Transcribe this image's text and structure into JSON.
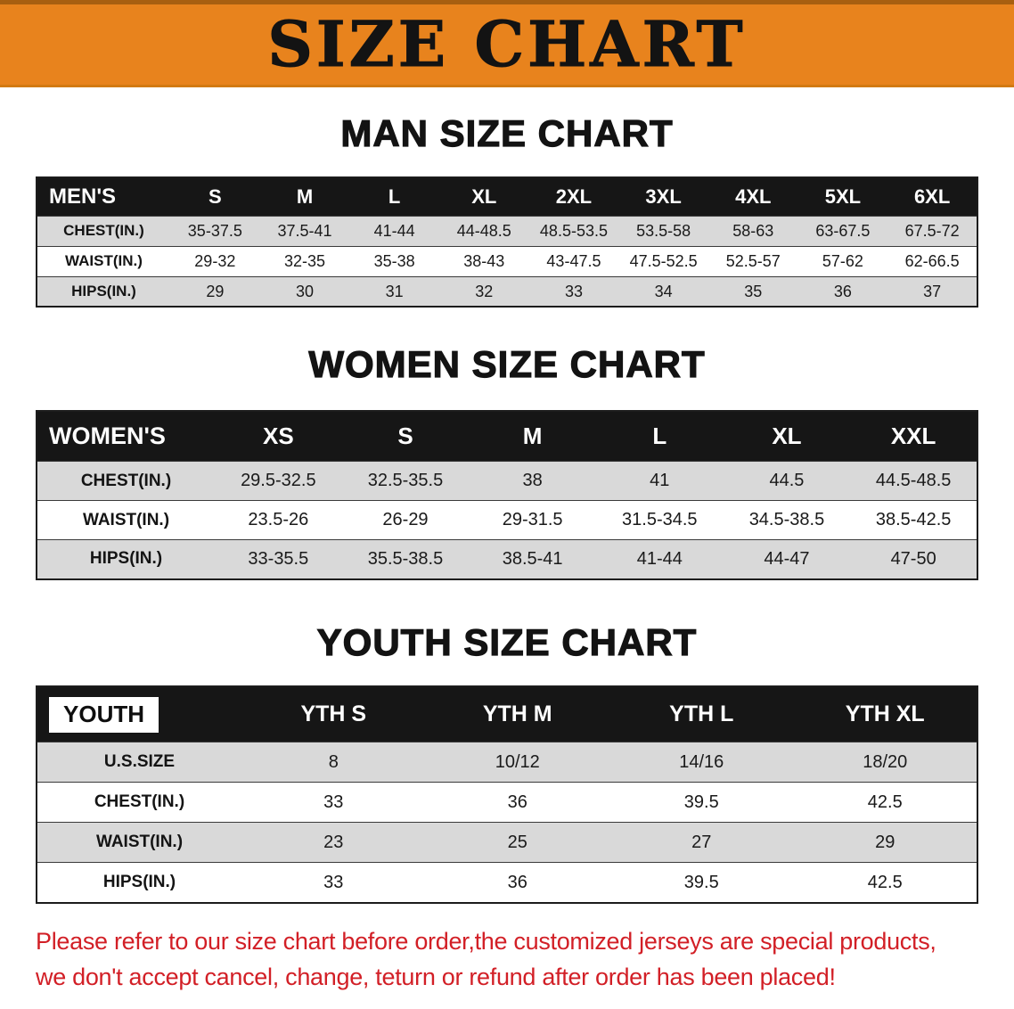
{
  "banner": {
    "title": "SIZE CHART"
  },
  "men": {
    "heading": "MAN SIZE CHART",
    "table": {
      "header": [
        "MEN'S",
        "S",
        "M",
        "L",
        "XL",
        "2XL",
        "3XL",
        "4XL",
        "5XL",
        "6XL"
      ],
      "rows": [
        [
          "CHEST(IN.)",
          "35-37.5",
          "37.5-41",
          "41-44",
          "44-48.5",
          "48.5-53.5",
          "53.5-58",
          "58-63",
          "63-67.5",
          "67.5-72"
        ],
        [
          "WAIST(IN.)",
          "29-32",
          "32-35",
          "35-38",
          "38-43",
          "43-47.5",
          "47.5-52.5",
          "52.5-57",
          "57-62",
          "62-66.5"
        ],
        [
          "HIPS(IN.)",
          "29",
          "30",
          "31",
          "32",
          "33",
          "34",
          "35",
          "36",
          "37"
        ]
      ]
    }
  },
  "women": {
    "heading": "WOMEN SIZE CHART",
    "table": {
      "header": [
        "WOMEN'S",
        "XS",
        "S",
        "M",
        "L",
        "XL",
        "XXL"
      ],
      "rows": [
        [
          "CHEST(IN.)",
          "29.5-32.5",
          "32.5-35.5",
          "38",
          "41",
          "44.5",
          "44.5-48.5"
        ],
        [
          "WAIST(IN.)",
          "23.5-26",
          "26-29",
          "29-31.5",
          "31.5-34.5",
          "34.5-38.5",
          "38.5-42.5"
        ],
        [
          "HIPS(IN.)",
          "33-35.5",
          "35.5-38.5",
          "38.5-41",
          "41-44",
          "44-47",
          "47-50"
        ]
      ]
    }
  },
  "youth": {
    "heading": "YOUTH SIZE CHART",
    "table": {
      "header": [
        "YOUTH",
        "YTH S",
        "YTH M",
        "YTH L",
        "YTH XL"
      ],
      "rows": [
        [
          "U.S.SIZE",
          "8",
          "10/12",
          "14/16",
          "18/20"
        ],
        [
          "CHEST(IN.)",
          "33",
          "36",
          "39.5",
          "42.5"
        ],
        [
          "WAIST(IN.)",
          "23",
          "25",
          "27",
          "29"
        ],
        [
          "HIPS(IN.)",
          "33",
          "36",
          "39.5",
          "42.5"
        ]
      ]
    }
  },
  "footer": {
    "line1": "Please refer to our size chart before order,the customized jerseys are special products,",
    "line2": "we don't accept cancel, change, teturn or refund after order has been placed!"
  },
  "colors": {
    "banner_orange": "#e8831d",
    "table_header": "#161616",
    "row_gray": "#d9d9d9",
    "note_red": "#d21f26"
  }
}
